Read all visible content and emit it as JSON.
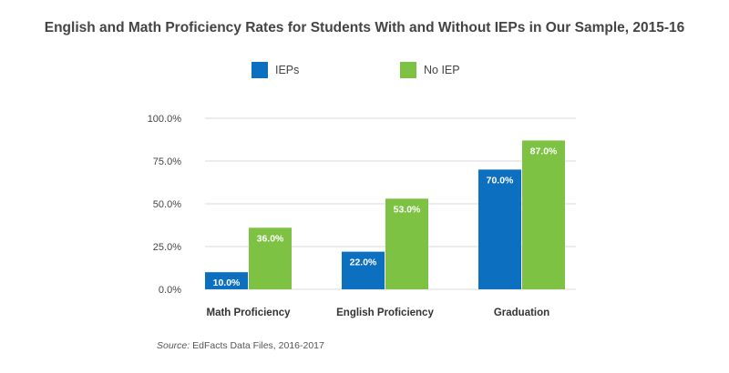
{
  "title": "English and Math Proficiency Rates for Students With and Without IEPs in Our Sample, 2015-16",
  "source": {
    "prefix": "Source:",
    "text": "EdFacts Data Files, 2016-2017"
  },
  "colors": {
    "ieps": "#0d6fc0",
    "no_iep": "#7dc242",
    "grid": "#d9d9d9",
    "text": "#444444"
  },
  "chart_data": {
    "type": "bar",
    "title": "English and Math Proficiency Rates for Students With and Without IEPs in Our Sample, 2015-16",
    "categories": [
      "Math Proficiency",
      "English Proficiency",
      "Graduation"
    ],
    "series": [
      {
        "name": "IEPs",
        "values": [
          10.0,
          22.0,
          70.0
        ],
        "labels": [
          "10.0%",
          "22.0%",
          "70.0%"
        ]
      },
      {
        "name": "No IEP",
        "values": [
          36.0,
          53.0,
          87.0
        ],
        "labels": [
          "36.0%",
          "53.0%",
          "87.0%"
        ]
      }
    ],
    "ylim": [
      0,
      100
    ],
    "yticks": [
      0,
      25,
      50,
      75,
      100
    ],
    "ytick_labels": [
      "0.0%",
      "25.0%",
      "50.0%",
      "75.0%",
      "100.0%"
    ],
    "xlabel": "",
    "ylabel": "",
    "grid": true,
    "legend": "top-center"
  }
}
